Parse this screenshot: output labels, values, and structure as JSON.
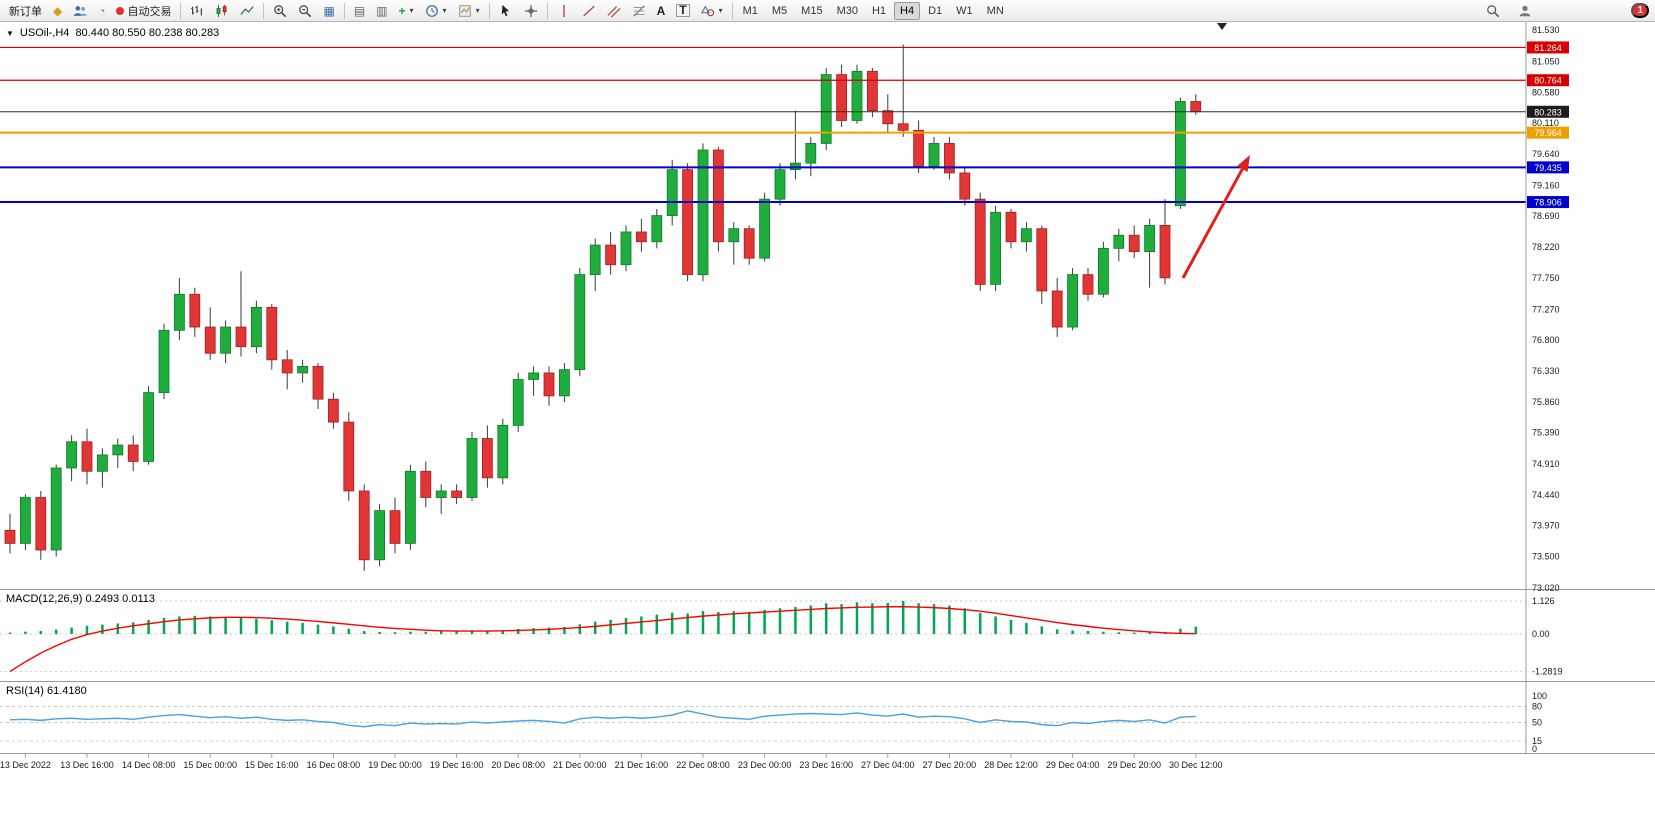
{
  "toolbar": {
    "new_order_label": "新订单",
    "auto_trading_label": "自动交易",
    "timeframes": [
      "M1",
      "M5",
      "M15",
      "M30",
      "H1",
      "H4",
      "D1",
      "W1",
      "MN"
    ],
    "active_timeframe": "H4",
    "tool_a_label": "A",
    "tool_t_label": "T",
    "notification_count": "1"
  },
  "chart": {
    "title": "USOil-,H4",
    "ohlc_label": "80.440 80.550 80.238 80.283",
    "colors": {
      "bull": "#1fae3d",
      "bear": "#e23535",
      "bull_stroke": "#0f7a26",
      "bear_stroke": "#a81f1f",
      "wick": "#3a3a3a",
      "macd_hist": "#00a651",
      "macd_signal": "#ff0000",
      "rsi_line": "#4aa0e0",
      "axis_line": "#9a9a9a",
      "arrow": "#e01f1f"
    },
    "price_axis": [
      "81.530",
      "81.050",
      "80.580",
      "80.110",
      "79.640",
      "79.160",
      "78.690",
      "78.220",
      "77.750",
      "77.270",
      "76.800",
      "76.330",
      "75.860",
      "75.390",
      "74.910",
      "74.440",
      "73.970",
      "73.500",
      "73.020"
    ],
    "price_tags": [
      {
        "price": 81.264,
        "label": "81.264",
        "color": "#d60000"
      },
      {
        "price": 80.764,
        "label": "80.764",
        "color": "#d60000"
      },
      {
        "price": 80.283,
        "label": "80.283",
        "color": "#1c1c1c"
      },
      {
        "price": 79.964,
        "label": "79.964",
        "color": "#efa000"
      },
      {
        "price": 79.435,
        "label": "79.435",
        "color": "#0000cf"
      },
      {
        "price": 78.906,
        "label": "78.906",
        "color": "#0000cf"
      }
    ],
    "hlines": [
      {
        "price": 81.264,
        "color": "#d60000",
        "width": 1.2
      },
      {
        "price": 80.764,
        "color": "#d60000",
        "width": 1.2
      },
      {
        "price": 79.964,
        "color": "#efa000",
        "width": 2
      },
      {
        "price": 79.435,
        "color": "#0000cf",
        "width": 2
      },
      {
        "price": 78.906,
        "color": "#0000cf",
        "width": 2
      },
      {
        "price": 80.283,
        "color": "#2e2e2e",
        "width": 1
      }
    ]
  },
  "chart_data": {
    "type": "candlestick",
    "symbol": "USOil-",
    "timeframe": "H4",
    "ylim": [
      73.02,
      81.53
    ],
    "candles": [
      [
        73.9,
        74.15,
        73.55,
        73.7
      ],
      [
        73.7,
        74.45,
        73.6,
        74.4
      ],
      [
        74.4,
        74.5,
        73.45,
        73.6
      ],
      [
        73.6,
        74.9,
        73.5,
        74.85
      ],
      [
        74.85,
        75.35,
        74.65,
        75.25
      ],
      [
        75.25,
        75.45,
        74.6,
        74.8
      ],
      [
        74.8,
        75.15,
        74.55,
        75.05
      ],
      [
        75.05,
        75.3,
        74.85,
        75.2
      ],
      [
        75.2,
        75.35,
        74.8,
        74.95
      ],
      [
        74.95,
        76.1,
        74.9,
        76.0
      ],
      [
        76.0,
        77.05,
        75.9,
        76.95
      ],
      [
        76.95,
        77.75,
        76.8,
        77.5
      ],
      [
        77.5,
        77.6,
        76.85,
        77.0
      ],
      [
        77.0,
        77.3,
        76.5,
        76.6
      ],
      [
        76.6,
        77.1,
        76.45,
        77.0
      ],
      [
        77.0,
        77.85,
        76.55,
        76.7
      ],
      [
        76.7,
        77.4,
        76.6,
        77.3
      ],
      [
        77.3,
        77.35,
        76.35,
        76.5
      ],
      [
        76.5,
        76.65,
        76.05,
        76.3
      ],
      [
        76.3,
        76.5,
        76.15,
        76.4
      ],
      [
        76.4,
        76.45,
        75.75,
        75.9
      ],
      [
        75.9,
        76.0,
        75.45,
        75.55
      ],
      [
        75.55,
        75.7,
        74.35,
        74.5
      ],
      [
        74.5,
        74.6,
        73.28,
        73.45
      ],
      [
        73.45,
        74.3,
        73.35,
        74.2
      ],
      [
        74.2,
        74.4,
        73.55,
        73.7
      ],
      [
        73.7,
        74.9,
        73.6,
        74.8
      ],
      [
        74.8,
        74.95,
        74.25,
        74.4
      ],
      [
        74.4,
        74.6,
        74.15,
        74.5
      ],
      [
        74.5,
        74.6,
        74.3,
        74.4
      ],
      [
        74.4,
        75.4,
        74.35,
        75.3
      ],
      [
        75.3,
        75.5,
        74.55,
        74.7
      ],
      [
        74.7,
        75.6,
        74.6,
        75.5
      ],
      [
        75.5,
        76.3,
        75.4,
        76.2
      ],
      [
        76.2,
        76.4,
        75.95,
        76.3
      ],
      [
        76.3,
        76.4,
        75.8,
        75.95
      ],
      [
        75.95,
        76.45,
        75.85,
        76.35
      ],
      [
        76.35,
        77.9,
        76.25,
        77.8
      ],
      [
        77.8,
        78.35,
        77.55,
        78.25
      ],
      [
        78.25,
        78.45,
        77.8,
        77.95
      ],
      [
        77.95,
        78.55,
        77.85,
        78.45
      ],
      [
        78.45,
        78.65,
        78.15,
        78.3
      ],
      [
        78.3,
        78.8,
        78.2,
        78.7
      ],
      [
        78.7,
        79.55,
        78.55,
        79.4
      ],
      [
        79.4,
        79.5,
        77.7,
        77.8
      ],
      [
        77.8,
        79.8,
        77.7,
        79.7
      ],
      [
        79.7,
        79.75,
        78.15,
        78.3
      ],
      [
        78.3,
        78.6,
        77.95,
        78.5
      ],
      [
        78.5,
        78.55,
        77.95,
        78.05
      ],
      [
        78.05,
        79.05,
        78.0,
        78.95
      ],
      [
        78.95,
        79.5,
        78.85,
        79.4
      ],
      [
        79.4,
        80.3,
        79.25,
        79.5
      ],
      [
        79.5,
        79.9,
        79.3,
        79.8
      ],
      [
        79.8,
        80.95,
        79.7,
        80.85
      ],
      [
        80.85,
        81.0,
        80.05,
        80.15
      ],
      [
        80.15,
        81.0,
        80.1,
        80.9
      ],
      [
        80.9,
        80.95,
        80.2,
        80.3
      ],
      [
        80.3,
        80.55,
        79.95,
        80.1
      ],
      [
        80.1,
        81.31,
        79.9,
        80.0
      ],
      [
        80.0,
        80.15,
        79.35,
        79.45
      ],
      [
        79.45,
        79.9,
        79.4,
        79.8
      ],
      [
        79.8,
        79.9,
        79.25,
        79.35
      ],
      [
        79.35,
        79.45,
        78.85,
        78.95
      ],
      [
        78.95,
        79.05,
        77.55,
        77.65
      ],
      [
        77.65,
        78.85,
        77.55,
        78.75
      ],
      [
        78.75,
        78.8,
        78.2,
        78.3
      ],
      [
        78.3,
        78.6,
        78.15,
        78.5
      ],
      [
        78.5,
        78.55,
        77.35,
        77.55
      ],
      [
        77.55,
        77.75,
        76.85,
        77.0
      ],
      [
        77.0,
        77.9,
        76.95,
        77.8
      ],
      [
        77.8,
        77.9,
        77.4,
        77.5
      ],
      [
        77.5,
        78.3,
        77.45,
        78.2
      ],
      [
        78.2,
        78.5,
        78.0,
        78.4
      ],
      [
        78.4,
        78.55,
        78.05,
        78.15
      ],
      [
        78.15,
        78.65,
        77.6,
        78.55
      ],
      [
        78.55,
        78.95,
        77.65,
        77.75
      ],
      [
        78.85,
        80.5,
        78.8,
        80.44
      ],
      [
        80.44,
        80.55,
        80.238,
        80.283
      ]
    ],
    "time_labels": [
      "13 Dec 2022",
      "13 Dec 16:00",
      "14 Dec 08:00",
      "15 Dec 00:00",
      "15 Dec 16:00",
      "16 Dec 08:00",
      "19 Dec 00:00",
      "19 Dec 16:00",
      "20 Dec 08:00",
      "21 Dec 00:00",
      "21 Dec 16:00",
      "22 Dec 08:00",
      "23 Dec 00:00",
      "23 Dec 16:00",
      "27 Dec 04:00",
      "27 Dec 20:00",
      "28 Dec 12:00",
      "29 Dec 04:00",
      "29 Dec 20:00",
      "30 Dec 12:00"
    ],
    "indicators": {
      "macd": {
        "label": "MACD(12,26,9)",
        "values_label": "0.2493 0.0113",
        "scale": [
          "1.126",
          "0.00",
          "-1.2819"
        ],
        "histogram": [
          0.05,
          0.08,
          0.1,
          0.15,
          0.22,
          0.28,
          0.32,
          0.36,
          0.4,
          0.48,
          0.55,
          0.6,
          0.62,
          0.6,
          0.58,
          0.55,
          0.52,
          0.47,
          0.42,
          0.38,
          0.32,
          0.26,
          0.18,
          0.1,
          0.07,
          0.06,
          0.08,
          0.08,
          0.09,
          0.1,
          0.13,
          0.12,
          0.13,
          0.17,
          0.2,
          0.22,
          0.24,
          0.33,
          0.42,
          0.48,
          0.55,
          0.6,
          0.66,
          0.73,
          0.7,
          0.78,
          0.75,
          0.78,
          0.76,
          0.82,
          0.88,
          0.92,
          0.97,
          1.05,
          1.02,
          1.08,
          1.05,
          1.06,
          1.13,
          1.05,
          1.02,
          0.97,
          0.88,
          0.72,
          0.6,
          0.48,
          0.38,
          0.26,
          0.16,
          0.12,
          0.1,
          0.08,
          0.06,
          0.05,
          0.05,
          0.06,
          0.18,
          0.25
        ],
        "signal": [
          -1.28,
          -0.95,
          -0.65,
          -0.4,
          -0.18,
          -0.02,
          0.1,
          0.2,
          0.28,
          0.35,
          0.42,
          0.48,
          0.52,
          0.55,
          0.57,
          0.57,
          0.56,
          0.54,
          0.51,
          0.47,
          0.43,
          0.38,
          0.33,
          0.28,
          0.23,
          0.19,
          0.16,
          0.13,
          0.11,
          0.1,
          0.1,
          0.1,
          0.11,
          0.12,
          0.14,
          0.16,
          0.19,
          0.22,
          0.26,
          0.31,
          0.36,
          0.41,
          0.46,
          0.51,
          0.56,
          0.61,
          0.65,
          0.69,
          0.72,
          0.75,
          0.78,
          0.81,
          0.84,
          0.87,
          0.89,
          0.91,
          0.92,
          0.93,
          0.93,
          0.92,
          0.9,
          0.87,
          0.83,
          0.78,
          0.71,
          0.63,
          0.55,
          0.47,
          0.39,
          0.32,
          0.26,
          0.2,
          0.15,
          0.11,
          0.07,
          0.04,
          0.02,
          0.01
        ]
      },
      "rsi": {
        "label": "RSI(14)",
        "value_label": "61.4180",
        "levels": [
          "100",
          "80",
          "50",
          "15",
          "0"
        ],
        "values": [
          55,
          56,
          54,
          57,
          58,
          56,
          57,
          58,
          56,
          60,
          63,
          65,
          62,
          59,
          61,
          58,
          60,
          56,
          54,
          55,
          52,
          50,
          45,
          42,
          46,
          44,
          49,
          47,
          48,
          47,
          51,
          49,
          51,
          53,
          54,
          52,
          49,
          57,
          60,
          58,
          60,
          58,
          60,
          64,
          72,
          66,
          60,
          58,
          56,
          62,
          64,
          66,
          67,
          66,
          65,
          68,
          64,
          62,
          66,
          60,
          62,
          61,
          57,
          50,
          55,
          52,
          51,
          46,
          44,
          50,
          48,
          52,
          54,
          52,
          55,
          49,
          60,
          61.4
        ]
      }
    },
    "annotation_arrow": {
      "from": [
        1183,
        256
      ],
      "to": [
        1250,
        133
      ],
      "color": "#e01f1f"
    }
  }
}
